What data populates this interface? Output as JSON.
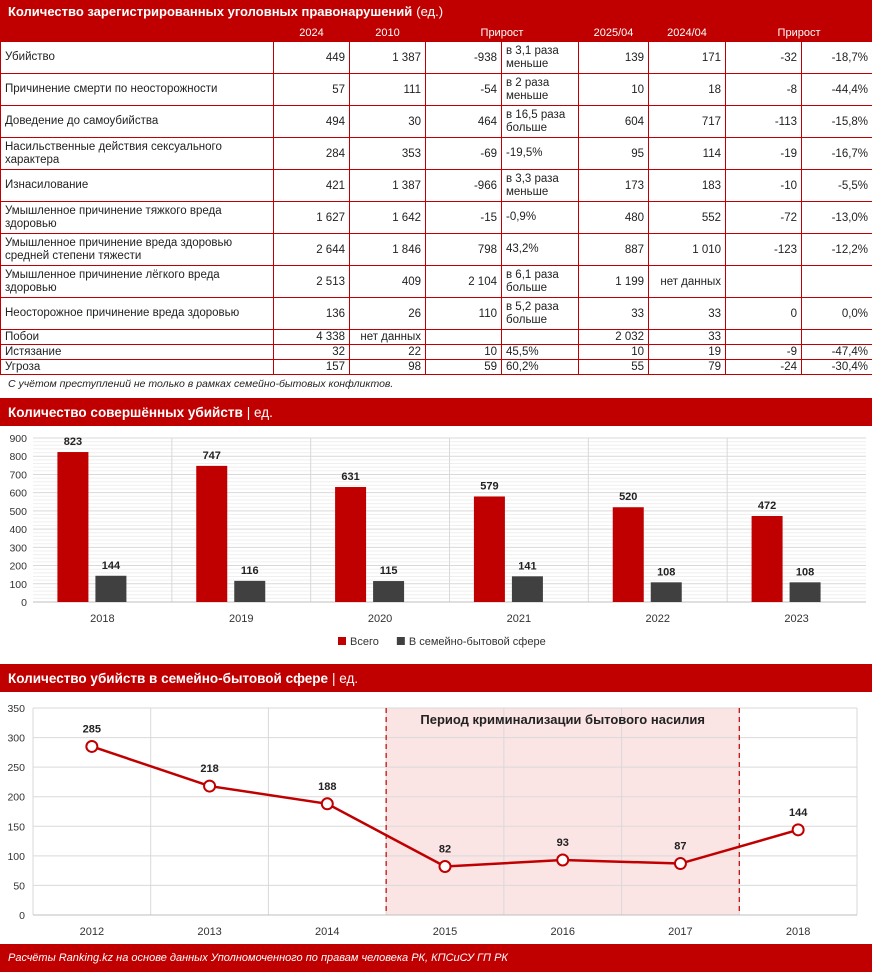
{
  "table_section": {
    "title": "Количество зарегистрированных уголовных правонарушений",
    "unit": "(ед.)",
    "headers": [
      "",
      "2024",
      "2010",
      "Прирост",
      "2025/04",
      "2024/04",
      "Прирост"
    ],
    "rows": [
      {
        "name": "Убийство",
        "v2024": "449",
        "v2010": "1 387",
        "growth_abs": "-938",
        "growth_rel": "в 3,1 раза меньше",
        "v2025_04": "139",
        "v2024_04": "171",
        "growth2_abs": "-32",
        "growth2_rel": "-18,7%"
      },
      {
        "name": "Причинение смерти по неосторожности",
        "v2024": "57",
        "v2010": "111",
        "growth_abs": "-54",
        "growth_rel": "в 2 раза меньше",
        "v2025_04": "10",
        "v2024_04": "18",
        "growth2_abs": "-8",
        "growth2_rel": "-44,4%"
      },
      {
        "name": "Доведение до самоубийства",
        "v2024": "494",
        "v2010": "30",
        "growth_abs": "464",
        "growth_rel": "в 16,5 раза больше",
        "v2025_04": "604",
        "v2024_04": "717",
        "growth2_abs": "-113",
        "growth2_rel": "-15,8%"
      },
      {
        "name": "Насильственные действия сексуального характера",
        "v2024": "284",
        "v2010": "353",
        "growth_abs": "-69",
        "growth_rel": "-19,5%",
        "v2025_04": "95",
        "v2024_04": "114",
        "growth2_abs": "-19",
        "growth2_rel": "-16,7%"
      },
      {
        "name": "Изнасилование",
        "v2024": "421",
        "v2010": "1 387",
        "growth_abs": "-966",
        "growth_rel": "в 3,3 раза меньше",
        "v2025_04": "173",
        "v2024_04": "183",
        "growth2_abs": "-10",
        "growth2_rel": "-5,5%"
      },
      {
        "name": "Умышленное причинение тяжкого вреда здоровью",
        "v2024": "1 627",
        "v2010": "1 642",
        "growth_abs": "-15",
        "growth_rel": "-0,9%",
        "v2025_04": "480",
        "v2024_04": "552",
        "growth2_abs": "-72",
        "growth2_rel": "-13,0%"
      },
      {
        "name": "Умышленное причинение вреда здоровью средней степени тяжести",
        "v2024": "2 644",
        "v2010": "1 846",
        "growth_abs": "798",
        "growth_rel": "43,2%",
        "v2025_04": "887",
        "v2024_04": "1 010",
        "growth2_abs": "-123",
        "growth2_rel": "-12,2%"
      },
      {
        "name": "Умышленное причинение лёгкого вреда здоровью",
        "v2024": "2 513",
        "v2010": "409",
        "growth_abs": "2 104",
        "growth_rel": "в 6,1 раза больше",
        "v2025_04": "1 199",
        "v2024_04": "нет данных",
        "growth2_abs": "",
        "growth2_rel": ""
      },
      {
        "name": "Неосторожное причинение вреда здоровью",
        "v2024": "136",
        "v2010": "26",
        "growth_abs": "110",
        "growth_rel": "в 5,2 раза больше",
        "v2025_04": "33",
        "v2024_04": "33",
        "growth2_abs": "0",
        "growth2_rel": "0,0%"
      },
      {
        "name": "Побои",
        "v2024": "4 338",
        "v2010": "нет данных",
        "growth_abs": "",
        "growth_rel": "",
        "v2025_04": "2 032",
        "v2024_04": "33",
        "growth2_abs": "",
        "growth2_rel": ""
      },
      {
        "name": "Истязание",
        "v2024": "32",
        "v2010": "22",
        "growth_abs": "10",
        "growth_rel": "45,5%",
        "v2025_04": "10",
        "v2024_04": "19",
        "growth2_abs": "-9",
        "growth2_rel": "-47,4%"
      },
      {
        "name": "Угроза",
        "v2024": "157",
        "v2010": "98",
        "growth_abs": "59",
        "growth_rel": "60,2%",
        "v2025_04": "55",
        "v2024_04": "79",
        "growth2_abs": "-24",
        "growth2_rel": "-30,4%"
      }
    ],
    "footnote": "С учётом преступлений не только в рамках семейно-бытовых конфликтов."
  },
  "bar_section": {
    "title": "Количество совершённых убийств",
    "unit": "| ед."
  },
  "line_section": {
    "title": "Количество убийств в семейно-бытовой сфере",
    "unit": "| ед."
  },
  "source": "Расчёты Ranking.kz на основе данных Уполномоченного по правам человека РК, КПСиСУ ГП РК",
  "colors": {
    "brand_red": "#c00000",
    "dark_gray": "#404040",
    "highlight_fill": "#fbe4e4"
  },
  "chart_data": [
    {
      "type": "bar",
      "title": "Количество совершённых убийств",
      "categories": [
        "2018",
        "2019",
        "2020",
        "2021",
        "2022",
        "2023"
      ],
      "series": [
        {
          "name": "Всего",
          "values": [
            823,
            747,
            631,
            579,
            520,
            472
          ],
          "color": "#c00000"
        },
        {
          "name": "В семейно-бытовой сфере",
          "values": [
            144,
            116,
            115,
            141,
            108,
            108
          ],
          "color": "#404040"
        }
      ],
      "ylim": [
        0,
        900
      ],
      "yticks": [
        0,
        100,
        200,
        300,
        400,
        500,
        600,
        700,
        800,
        900
      ],
      "grid": true,
      "legend": "bottom"
    },
    {
      "type": "line",
      "title": "Количество убийств в семейно-бытовой сфере",
      "x": [
        "2012",
        "2013",
        "2014",
        "2015",
        "2016",
        "2017",
        "2018"
      ],
      "series": [
        {
          "values": [
            285,
            218,
            188,
            82,
            93,
            87,
            144
          ],
          "color": "#c00000"
        }
      ],
      "ylim": [
        0,
        350
      ],
      "yticks": [
        0,
        50,
        100,
        150,
        200,
        250,
        300,
        350
      ],
      "grid": true,
      "annotation": {
        "text": "Период криминализации бытового насилия",
        "from": "2015",
        "to": "2017"
      }
    }
  ]
}
